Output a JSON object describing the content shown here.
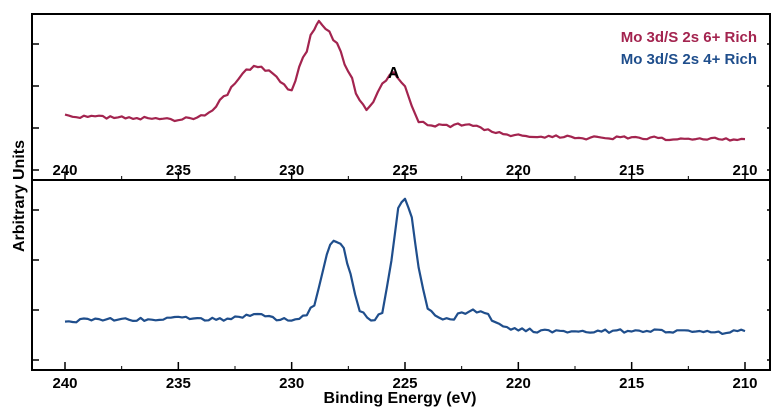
{
  "chart_data": {
    "type": "line",
    "xlabel": "Binding Energy (eV)",
    "ylabel": "Arbitrary Units",
    "xlim": [
      240,
      210
    ],
    "x_reversed": true,
    "x_ticks": [
      240,
      235,
      230,
      225,
      220,
      215,
      210
    ],
    "x_tick_labels": [
      "240",
      "235",
      "230",
      "225",
      "220",
      "215",
      "210"
    ],
    "legend": {
      "placement": "top-right"
    },
    "annotations": [
      {
        "text": "A",
        "x": 225.5,
        "panel": 0
      }
    ],
    "panels": [
      {
        "ylim": [
          0,
          1
        ],
        "series": [
          {
            "name": "Mo 3d/S 2s 6+ Rich",
            "color": "#a3244f",
            "x": [
              240,
              239,
              238,
              237,
              236,
              235,
              234.5,
              234,
              233.5,
              233,
              232.5,
              232,
              231.5,
              231,
              230.5,
              230,
              229.5,
              229,
              228.8,
              228.5,
              228,
              227.5,
              227,
              226.7,
              226.4,
              226,
              225.5,
              225,
              224.7,
              224.4,
              224,
              223.5,
              223,
              222.5,
              222,
              221.5,
              221,
              220.5,
              220,
              219,
              218,
              217,
              216,
              215,
              214,
              213,
              212,
              211,
              210
            ],
            "y": [
              0.24,
              0.22,
              0.22,
              0.21,
              0.21,
              0.2,
              0.21,
              0.23,
              0.28,
              0.38,
              0.5,
              0.6,
              0.64,
              0.6,
              0.52,
              0.44,
              0.7,
              0.95,
              1.0,
              0.95,
              0.82,
              0.6,
              0.35,
              0.28,
              0.34,
              0.5,
              0.58,
              0.47,
              0.3,
              0.19,
              0.16,
              0.15,
              0.15,
              0.16,
              0.15,
              0.12,
              0.09,
              0.07,
              0.07,
              0.06,
              0.06,
              0.05,
              0.05,
              0.05,
              0.05,
              0.04,
              0.04,
              0.04,
              0.04
            ]
          }
        ]
      },
      {
        "ylim": [
          0,
          1
        ],
        "series": [
          {
            "name": "Mo 3d/S 2s 4+ Rich",
            "color": "#1f4e8c",
            "x": [
              240,
              239,
              238,
              237,
              236,
              235,
              234,
              233,
              232,
              231.5,
              231,
              230.5,
              230,
              229.5,
              229,
              228.6,
              228.3,
              228,
              227.7,
              227.4,
              227,
              226.5,
              226,
              225.6,
              225.3,
              225,
              224.7,
              224.4,
              224,
              223.5,
              223,
              222.5,
              222,
              221.5,
              221,
              220.5,
              220,
              219,
              218,
              217,
              216,
              215,
              214,
              213,
              212,
              211,
              210
            ],
            "y": [
              0.08,
              0.1,
              0.1,
              0.1,
              0.1,
              0.11,
              0.1,
              0.1,
              0.12,
              0.13,
              0.12,
              0.1,
              0.1,
              0.12,
              0.2,
              0.45,
              0.62,
              0.64,
              0.58,
              0.4,
              0.15,
              0.09,
              0.14,
              0.5,
              0.86,
              0.93,
              0.8,
              0.45,
              0.18,
              0.1,
              0.1,
              0.14,
              0.16,
              0.14,
              0.08,
              0.04,
              0.03,
              0.02,
              0.02,
              0.02,
              0.02,
              0.02,
              0.02,
              0.02,
              0.02,
              0.01,
              0.02
            ]
          }
        ]
      }
    ]
  }
}
